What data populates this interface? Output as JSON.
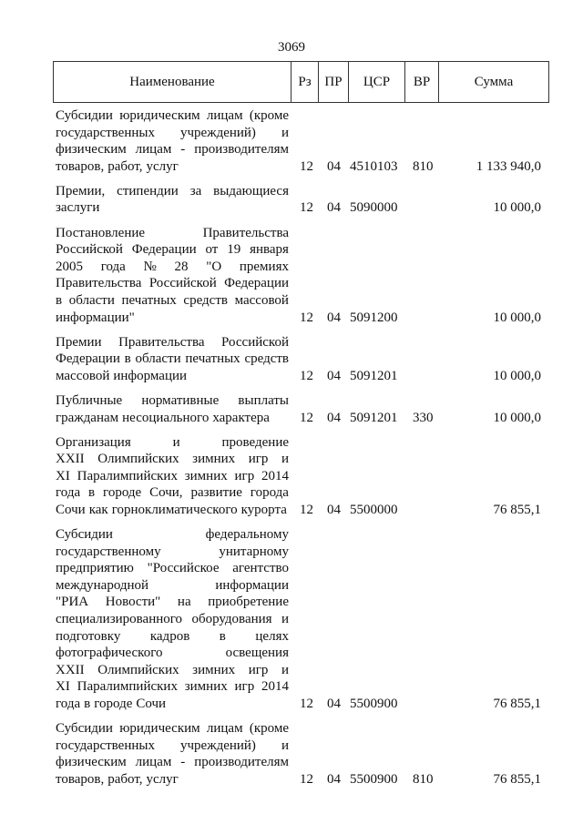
{
  "page_number": "3069",
  "headers": [
    "Наименование",
    "Рз",
    "ПР",
    "ЦСР",
    "ВР",
    "Сумма"
  ],
  "rows": [
    {
      "lines": [
        "Субсидии юридическим лицам (кроме",
        "государственных учреждений) и",
        "физическим лицам - производителям",
        "товаров, работ, услуг"
      ],
      "rz": "12",
      "pr": "04",
      "csr": "4510103",
      "vr": "810",
      "sum": "1 133 940,0"
    },
    {
      "lines": [
        "Премии, стипендии за выдающиеся",
        "заслуги"
      ],
      "rz": "12",
      "pr": "04",
      "csr": "5090000",
      "vr": "",
      "sum": "10 000,0"
    },
    {
      "lines": [
        "Постановление Правительства",
        "Российской Федерации от 19 января",
        "2005 года № 28 \"О премиях",
        "Правительства Российской Федерации",
        "в области печатных средств массовой",
        "информации\""
      ],
      "rz": "12",
      "pr": "04",
      "csr": "5091200",
      "vr": "",
      "sum": "10 000,0"
    },
    {
      "lines": [
        "Премии Правительства Российской",
        "Федерации в области печатных средств",
        "массовой информации"
      ],
      "rz": "12",
      "pr": "04",
      "csr": "5091201",
      "vr": "",
      "sum": "10 000,0"
    },
    {
      "lines": [
        "Публичные нормативные выплаты",
        "гражданам несоциального характера"
      ],
      "rz": "12",
      "pr": "04",
      "csr": "5091201",
      "vr": "330",
      "sum": "10 000,0"
    },
    {
      "lines": [
        "Организация и проведение",
        "XXII Олимпийских зимних игр и",
        "XI Паралимпийских зимних игр 2014",
        "года в городе Сочи, развитие города",
        "Сочи как горноклиматического курорта"
      ],
      "rz": "12",
      "pr": "04",
      "csr": "5500000",
      "vr": "",
      "sum": "76 855,1"
    },
    {
      "lines": [
        "Субсидии федеральному",
        "государственному унитарному",
        "предприятию \"Российское агентство",
        "международной информации",
        "\"РИА Новости\" на приобретение",
        "специализированного оборудования и",
        "подготовку кадров в целях",
        "фотографического освещения",
        "XXII Олимпийских зимних игр и",
        "XI Паралимпийских зимних игр 2014",
        "года в городе Сочи"
      ],
      "rz": "12",
      "pr": "04",
      "csr": "5500900",
      "vr": "",
      "sum": "76 855,1"
    },
    {
      "lines": [
        "Субсидии юридическим лицам (кроме",
        "государственных учреждений) и",
        "физическим лицам - производителям",
        "товаров, работ, услуг"
      ],
      "rz": "12",
      "pr": "04",
      "csr": "5500900",
      "vr": "810",
      "sum": "76 855,1"
    }
  ]
}
